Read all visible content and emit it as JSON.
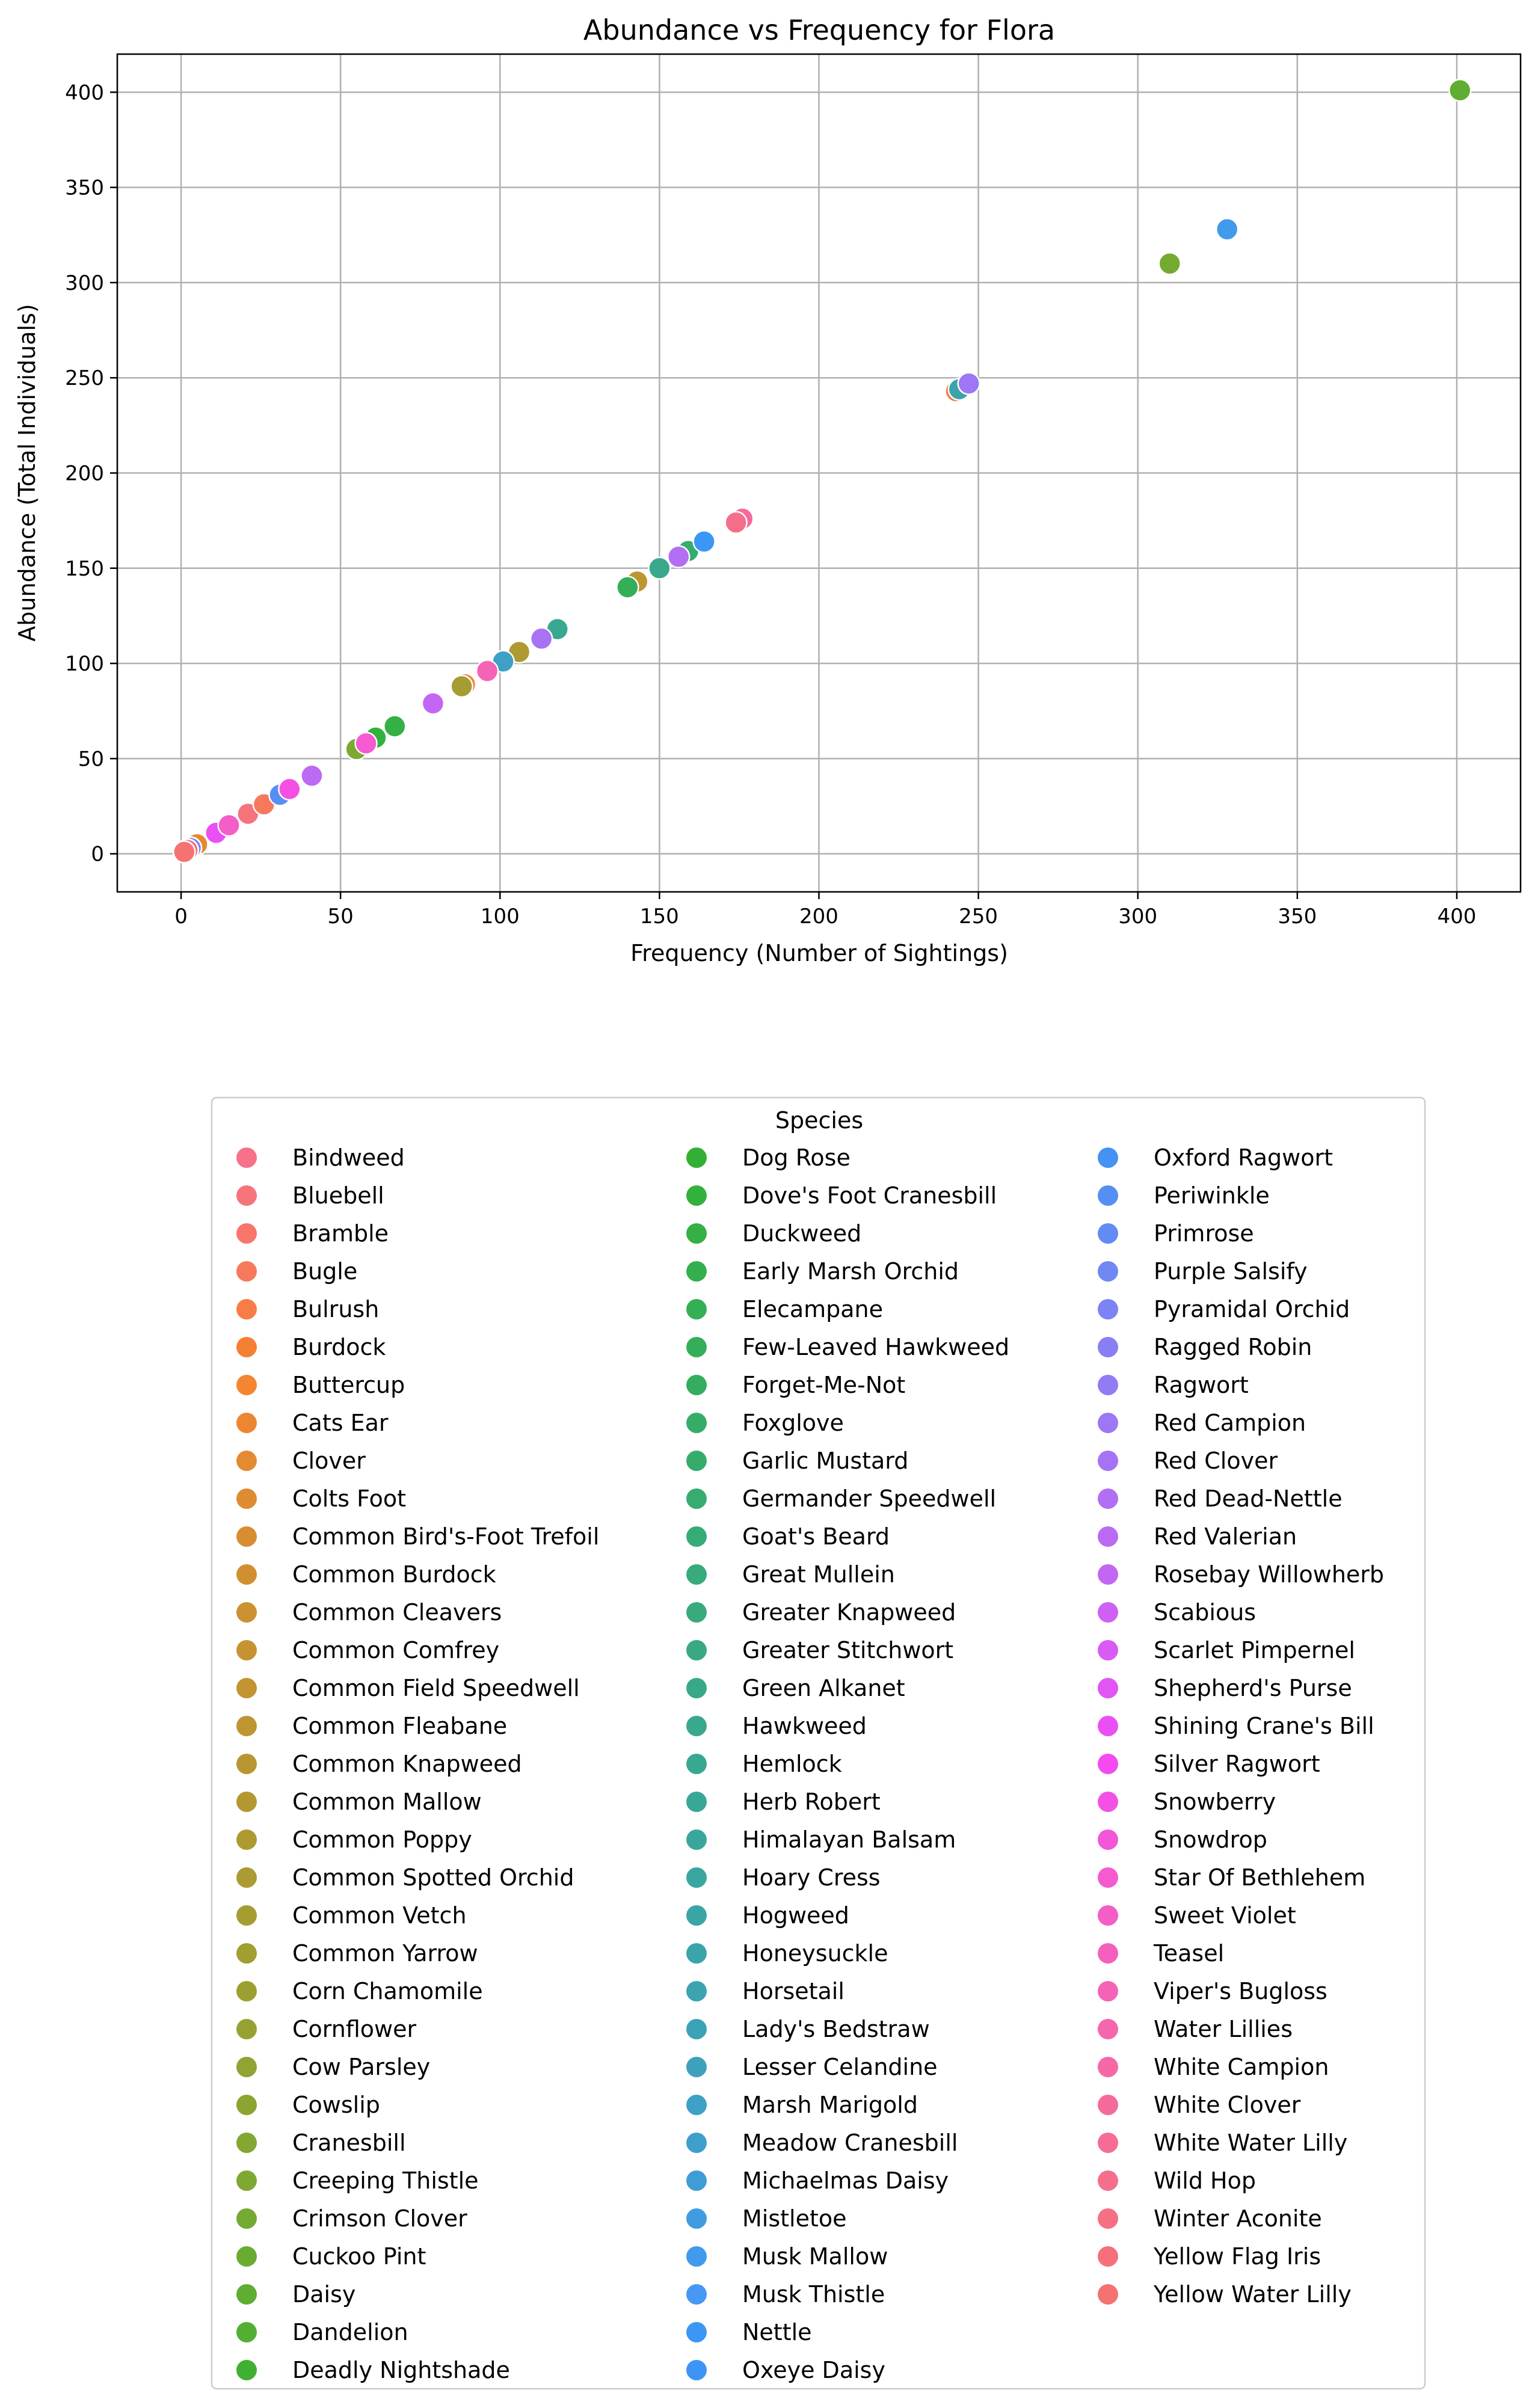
{
  "chart_data": {
    "type": "scatter",
    "title": "Abundance vs Frequency for Flora",
    "xlabel": "Frequency (Number of Sightings)",
    "ylabel": "Abundance (Total Individuals)",
    "xlim": [
      -20,
      420
    ],
    "ylim": [
      -20,
      420
    ],
    "xticks": [
      0,
      50,
      100,
      150,
      200,
      250,
      300,
      350,
      400
    ],
    "yticks": [
      0,
      50,
      100,
      150,
      200,
      250,
      300,
      350,
      400
    ],
    "grid": true,
    "legend_title": "Species",
    "legend_placement": "below chart, three columns",
    "series": [
      {
        "name": "Bindweed",
        "x": 1,
        "y": 1,
        "color": "#f77189"
      },
      {
        "name": "Bluebell",
        "x": 21,
        "y": 21,
        "color": "#f7737b"
      },
      {
        "name": "Bramble",
        "x": 3,
        "y": 3,
        "color": "#f7766c"
      },
      {
        "name": "Bugle",
        "x": 26,
        "y": 26,
        "color": "#f7795b"
      },
      {
        "name": "Bulrush",
        "x": 243,
        "y": 243,
        "color": "#f77c47"
      },
      {
        "name": "Burdock",
        "x": 89,
        "y": 89,
        "color": "#f48032"
      },
      {
        "name": "Buttercup",
        "x": 2,
        "y": 2,
        "color": "#f48531"
      },
      {
        "name": "Cats Ear",
        "x": 4,
        "y": 4,
        "color": "#ec8632"
      },
      {
        "name": "Clover",
        "x": 5,
        "y": 5,
        "color": "#e48a32"
      },
      {
        "name": "Colts Foot",
        "x": 2,
        "y": 2,
        "color": "#dd8c32"
      },
      {
        "name": "Common Bird's-Foot Trefoil",
        "x": 3,
        "y": 3,
        "color": "#d78e32"
      },
      {
        "name": "Common Burdock",
        "x": 1,
        "y": 1,
        "color": "#d18f32"
      },
      {
        "name": "Common Cleavers",
        "x": 2,
        "y": 2,
        "color": "#cc9132"
      },
      {
        "name": "Common Comfrey",
        "x": 1,
        "y": 1,
        "color": "#c79332"
      },
      {
        "name": "Common Field Speedwell",
        "x": 3,
        "y": 3,
        "color": "#c29432"
      },
      {
        "name": "Common Fleabane",
        "x": 143,
        "y": 143,
        "color": "#bd9632"
      },
      {
        "name": "Common Knapweed",
        "x": 1,
        "y": 1,
        "color": "#b89732"
      },
      {
        "name": "Common Mallow",
        "x": 2,
        "y": 2,
        "color": "#b39832"
      },
      {
        "name": "Common Poppy",
        "x": 106,
        "y": 106,
        "color": "#af9a32"
      },
      {
        "name": "Common Spotted Orchid",
        "x": 1,
        "y": 1,
        "color": "#aa9b32"
      },
      {
        "name": "Common Vetch",
        "x": 88,
        "y": 88,
        "color": "#a59d32"
      },
      {
        "name": "Common Yarrow",
        "x": 2,
        "y": 2,
        "color": "#a19e32"
      },
      {
        "name": "Corn Chamomile",
        "x": 1,
        "y": 1,
        "color": "#9ca032"
      },
      {
        "name": "Cornflower",
        "x": 3,
        "y": 3,
        "color": "#97a132"
      },
      {
        "name": "Cow Parsley",
        "x": 2,
        "y": 2,
        "color": "#91a332"
      },
      {
        "name": "Cowslip",
        "x": 1,
        "y": 1,
        "color": "#8ba432"
      },
      {
        "name": "Cranesbill",
        "x": 2,
        "y": 2,
        "color": "#84a632"
      },
      {
        "name": "Creeping Thistle",
        "x": 55,
        "y": 55,
        "color": "#7da832"
      },
      {
        "name": "Crimson Clover",
        "x": 310,
        "y": 310,
        "color": "#74aa32"
      },
      {
        "name": "Cuckoo Pint",
        "x": 1,
        "y": 1,
        "color": "#6aac32"
      },
      {
        "name": "Daisy",
        "x": 401,
        "y": 401,
        "color": "#5fad32"
      },
      {
        "name": "Dandelion",
        "x": 2,
        "y": 2,
        "color": "#52af32"
      },
      {
        "name": "Deadly Nightshade",
        "x": 1,
        "y": 1,
        "color": "#41b032"
      },
      {
        "name": "Dog Rose",
        "x": 2,
        "y": 2,
        "color": "#33b033"
      },
      {
        "name": "Dove's Foot Cranesbill",
        "x": 61,
        "y": 61,
        "color": "#33b13d"
      },
      {
        "name": "Duckweed",
        "x": 67,
        "y": 67,
        "color": "#34b045"
      },
      {
        "name": "Early Marsh Orchid",
        "x": 1,
        "y": 1,
        "color": "#34af4d"
      },
      {
        "name": "Elecampane",
        "x": 2,
        "y": 2,
        "color": "#35af54"
      },
      {
        "name": "Few-Leaved Hawkweed",
        "x": 140,
        "y": 140,
        "color": "#35ae5a"
      },
      {
        "name": "Forget-Me-Not",
        "x": 3,
        "y": 3,
        "color": "#35ad60"
      },
      {
        "name": "Foxglove",
        "x": 1,
        "y": 1,
        "color": "#36ad66"
      },
      {
        "name": "Garlic Mustard",
        "x": 2,
        "y": 2,
        "color": "#36ac6b"
      },
      {
        "name": "Germander Speedwell",
        "x": 159,
        "y": 159,
        "color": "#36ac70"
      },
      {
        "name": "Goat's Beard",
        "x": 1,
        "y": 1,
        "color": "#37ab75"
      },
      {
        "name": "Great Mullein",
        "x": 2,
        "y": 2,
        "color": "#37ab7a"
      },
      {
        "name": "Greater Knapweed",
        "x": 1,
        "y": 1,
        "color": "#38aa7e"
      },
      {
        "name": "Greater Stitchwort",
        "x": 3,
        "y": 3,
        "color": "#38a983"
      },
      {
        "name": "Green Alkanet",
        "x": 2,
        "y": 2,
        "color": "#38a988"
      },
      {
        "name": "Hawkweed",
        "x": 150,
        "y": 150,
        "color": "#39a88d"
      },
      {
        "name": "Hemlock",
        "x": 118,
        "y": 118,
        "color": "#39a891"
      },
      {
        "name": "Herb Robert",
        "x": 2,
        "y": 2,
        "color": "#39a796"
      },
      {
        "name": "Himalayan Balsam",
        "x": 1,
        "y": 1,
        "color": "#3aa69b"
      },
      {
        "name": "Hoary Cress",
        "x": 2,
        "y": 2,
        "color": "#3aa6a0"
      },
      {
        "name": "Hogweed",
        "x": 1,
        "y": 1,
        "color": "#3ba5a5"
      },
      {
        "name": "Honeysuckle",
        "x": 244,
        "y": 244,
        "color": "#3ba4aa"
      },
      {
        "name": "Horsetail",
        "x": 2,
        "y": 2,
        "color": "#3ca3b0"
      },
      {
        "name": "Lady's Bedstraw",
        "x": 1,
        "y": 1,
        "color": "#3ca2b6"
      },
      {
        "name": "Lesser Celandine",
        "x": 2,
        "y": 2,
        "color": "#3da1bd"
      },
      {
        "name": "Marsh Marigold",
        "x": 101,
        "y": 101,
        "color": "#3da0c4"
      },
      {
        "name": "Meadow Cranesbill",
        "x": 1,
        "y": 1,
        "color": "#3e9fcc"
      },
      {
        "name": "Michaelmas Daisy",
        "x": 2,
        "y": 2,
        "color": "#3f9dd5"
      },
      {
        "name": "Mistletoe",
        "x": 1,
        "y": 1,
        "color": "#409ce0"
      },
      {
        "name": "Musk Mallow",
        "x": 328,
        "y": 328,
        "color": "#419aeb"
      },
      {
        "name": "Musk Thistle",
        "x": 2,
        "y": 2,
        "color": "#4698f4"
      },
      {
        "name": "Nettle",
        "x": 164,
        "y": 164,
        "color": "#3a97f4"
      },
      {
        "name": "Oxeye Daisy",
        "x": 1,
        "y": 1,
        "color": "#3c95f4"
      },
      {
        "name": "Oxford Ragwort",
        "x": 2,
        "y": 2,
        "color": "#4592f4"
      },
      {
        "name": "Periwinkle",
        "x": 31,
        "y": 31,
        "color": "#558ff4"
      },
      {
        "name": "Primrose",
        "x": 2,
        "y": 2,
        "color": "#638bf4"
      },
      {
        "name": "Purple Salsify",
        "x": 1,
        "y": 1,
        "color": "#7087f4"
      },
      {
        "name": "Pyramidal Orchid",
        "x": 3,
        "y": 3,
        "color": "#7c83f4"
      },
      {
        "name": "Ragged Robin",
        "x": 2,
        "y": 2,
        "color": "#887ff4"
      },
      {
        "name": "Ragwort",
        "x": 1,
        "y": 1,
        "color": "#937bf4"
      },
      {
        "name": "Red Campion",
        "x": 247,
        "y": 247,
        "color": "#9d77f4"
      },
      {
        "name": "Red Clover",
        "x": 113,
        "y": 113,
        "color": "#a773f4"
      },
      {
        "name": "Red Dead-Nettle",
        "x": 156,
        "y": 156,
        "color": "#b16ff4"
      },
      {
        "name": "Red Valerian",
        "x": 41,
        "y": 41,
        "color": "#bb6af4"
      },
      {
        "name": "Rosebay Willowherb",
        "x": 79,
        "y": 79,
        "color": "#c466f4"
      },
      {
        "name": "Scabious",
        "x": 2,
        "y": 2,
        "color": "#ce60f4"
      },
      {
        "name": "Scarlet Pimpernel",
        "x": 1,
        "y": 1,
        "color": "#d75bf4"
      },
      {
        "name": "Shepherd's Purse",
        "x": 2,
        "y": 2,
        "color": "#e155f4"
      },
      {
        "name": "Shining Crane's Bill",
        "x": 11,
        "y": 11,
        "color": "#ea4ff4"
      },
      {
        "name": "Silver Ragwort",
        "x": 1,
        "y": 1,
        "color": "#f44af0"
      },
      {
        "name": "Snowberry",
        "x": 34,
        "y": 34,
        "color": "#f451e4"
      },
      {
        "name": "Snowdrop",
        "x": 2,
        "y": 2,
        "color": "#f456da"
      },
      {
        "name": "Star Of Bethlehem",
        "x": 58,
        "y": 58,
        "color": "#f55ad0"
      },
      {
        "name": "Sweet Violet",
        "x": 15,
        "y": 15,
        "color": "#f55dc7"
      },
      {
        "name": "Teasel",
        "x": 1,
        "y": 1,
        "color": "#f560be"
      },
      {
        "name": "Viper's Bugloss",
        "x": 96,
        "y": 96,
        "color": "#f563b6"
      },
      {
        "name": "Water Lillies",
        "x": 2,
        "y": 2,
        "color": "#f566ad"
      },
      {
        "name": "White Campion",
        "x": 1,
        "y": 1,
        "color": "#f568a5"
      },
      {
        "name": "White Clover",
        "x": 176,
        "y": 176,
        "color": "#f56a9d"
      },
      {
        "name": "White Water Lilly",
        "x": 2,
        "y": 2,
        "color": "#f56d95"
      },
      {
        "name": "Wild Hop",
        "x": 174,
        "y": 174,
        "color": "#f56f8d"
      },
      {
        "name": "Winter Aconite",
        "x": 1,
        "y": 1,
        "color": "#f57085"
      },
      {
        "name": "Yellow Flag Iris",
        "x": 2,
        "y": 2,
        "color": "#f5707c"
      },
      {
        "name": "Yellow Water Lilly",
        "x": 1,
        "y": 1,
        "color": "#f57273"
      }
    ]
  }
}
